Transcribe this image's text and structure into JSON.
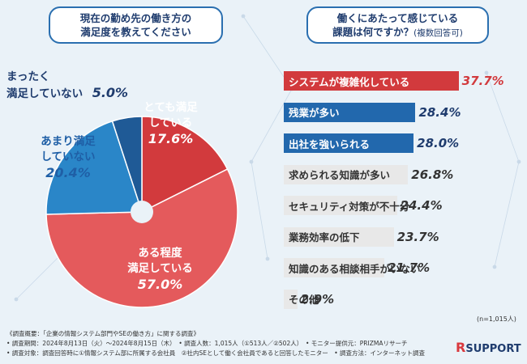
{
  "questions": {
    "q1_line1": "現在の勤め先の働き方の",
    "q1_line2": "満足度を教えてください",
    "q2_line1": "働くにあたって感じている",
    "q2_line2": "課題は何ですか？",
    "q2_note": "(複数回答可)"
  },
  "chart_data": [
    {
      "type": "pie",
      "labels": [
        "とても満足している",
        "ある程度満足している",
        "あまり満足していない",
        "まったく満足していない"
      ],
      "label_lines": [
        [
          "とても満足",
          "している"
        ],
        [
          "ある程度",
          "満足している"
        ],
        [
          "あまり満足",
          "していない"
        ],
        [
          "まったく",
          "満足していない"
        ]
      ],
      "values": [
        17.6,
        57.0,
        20.4,
        5.0
      ],
      "value_labels": [
        "17.6%",
        "57.0%",
        "20.4%",
        "5.0%"
      ],
      "colors": [
        "#d23a3d",
        "#e45a5c",
        "#2a86c8",
        "#1f5a96"
      ]
    },
    {
      "type": "bar",
      "orientation": "horizontal",
      "categories": [
        "システムが複雑化している",
        "残業が多い",
        "出社を強いられる",
        "求められる知識が多い",
        "セキュリティ対策が不十分",
        "業務効率の低下",
        "知識のある相談相手がいない",
        "その他"
      ],
      "values": [
        37.7,
        28.4,
        28.0,
        26.8,
        24.4,
        23.7,
        21.7,
        2.9
      ],
      "value_labels": [
        "37.7%",
        "28.4%",
        "28.0%",
        "26.8%",
        "24.4%",
        "23.7%",
        "21.7%",
        "2.9%"
      ],
      "bar_styles": [
        "red",
        "blue",
        "blue",
        "gray",
        "gray",
        "gray",
        "gray",
        "gray"
      ],
      "n_label": "(n=1,015人)"
    }
  ],
  "notes": [
    "《調査概要：「企業の情報システム部門やSEの働き方」に関する調査》",
    "• 調査期間：2024年8月13日（火）〜2024年8月15日（木）　• 調査人数：1,015人（①513人／②502人）　• モニター提供元：PRIZMAリサーチ",
    "• 調査対象：調査回答時に①情報システム部に所属する会社員　②社内SEとして働く会社員であると回答したモニター　• 調査方法：インターネット調査"
  ],
  "logo": {
    "r": "R",
    "text": "SUPPORT"
  },
  "colors": {
    "red": "#d23a3d",
    "blue": "#2268ad",
    "gray": "#e8e8e8",
    "navy": "#1f3c6e"
  }
}
